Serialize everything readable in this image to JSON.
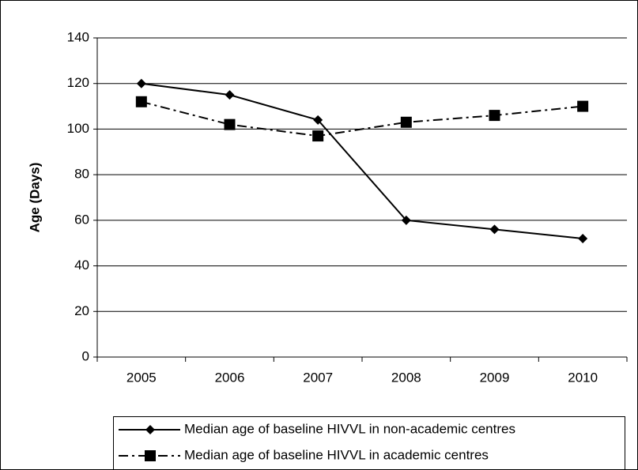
{
  "chart_data": {
    "type": "line",
    "y_label": "Age (Days)",
    "categories": [
      "2005",
      "2006",
      "2007",
      "2008",
      "2009",
      "2010"
    ],
    "series": [
      {
        "name": "Median age of baseline HIVVL in non-academic centres",
        "color": "#000000",
        "marker": "diamond",
        "line_style": "solid",
        "values": [
          120,
          115,
          104,
          60,
          56,
          52
        ]
      },
      {
        "name": "Median age of baseline HIVVL in academic centres",
        "color": "#000000",
        "marker": "square",
        "line_style": "dashdot",
        "values": [
          112,
          102,
          97,
          103,
          106,
          110
        ]
      }
    ],
    "ylim": [
      0,
      140
    ],
    "yticks": [
      0,
      20,
      40,
      60,
      80,
      100,
      120,
      140
    ],
    "grid": true,
    "legend": "bottom"
  }
}
